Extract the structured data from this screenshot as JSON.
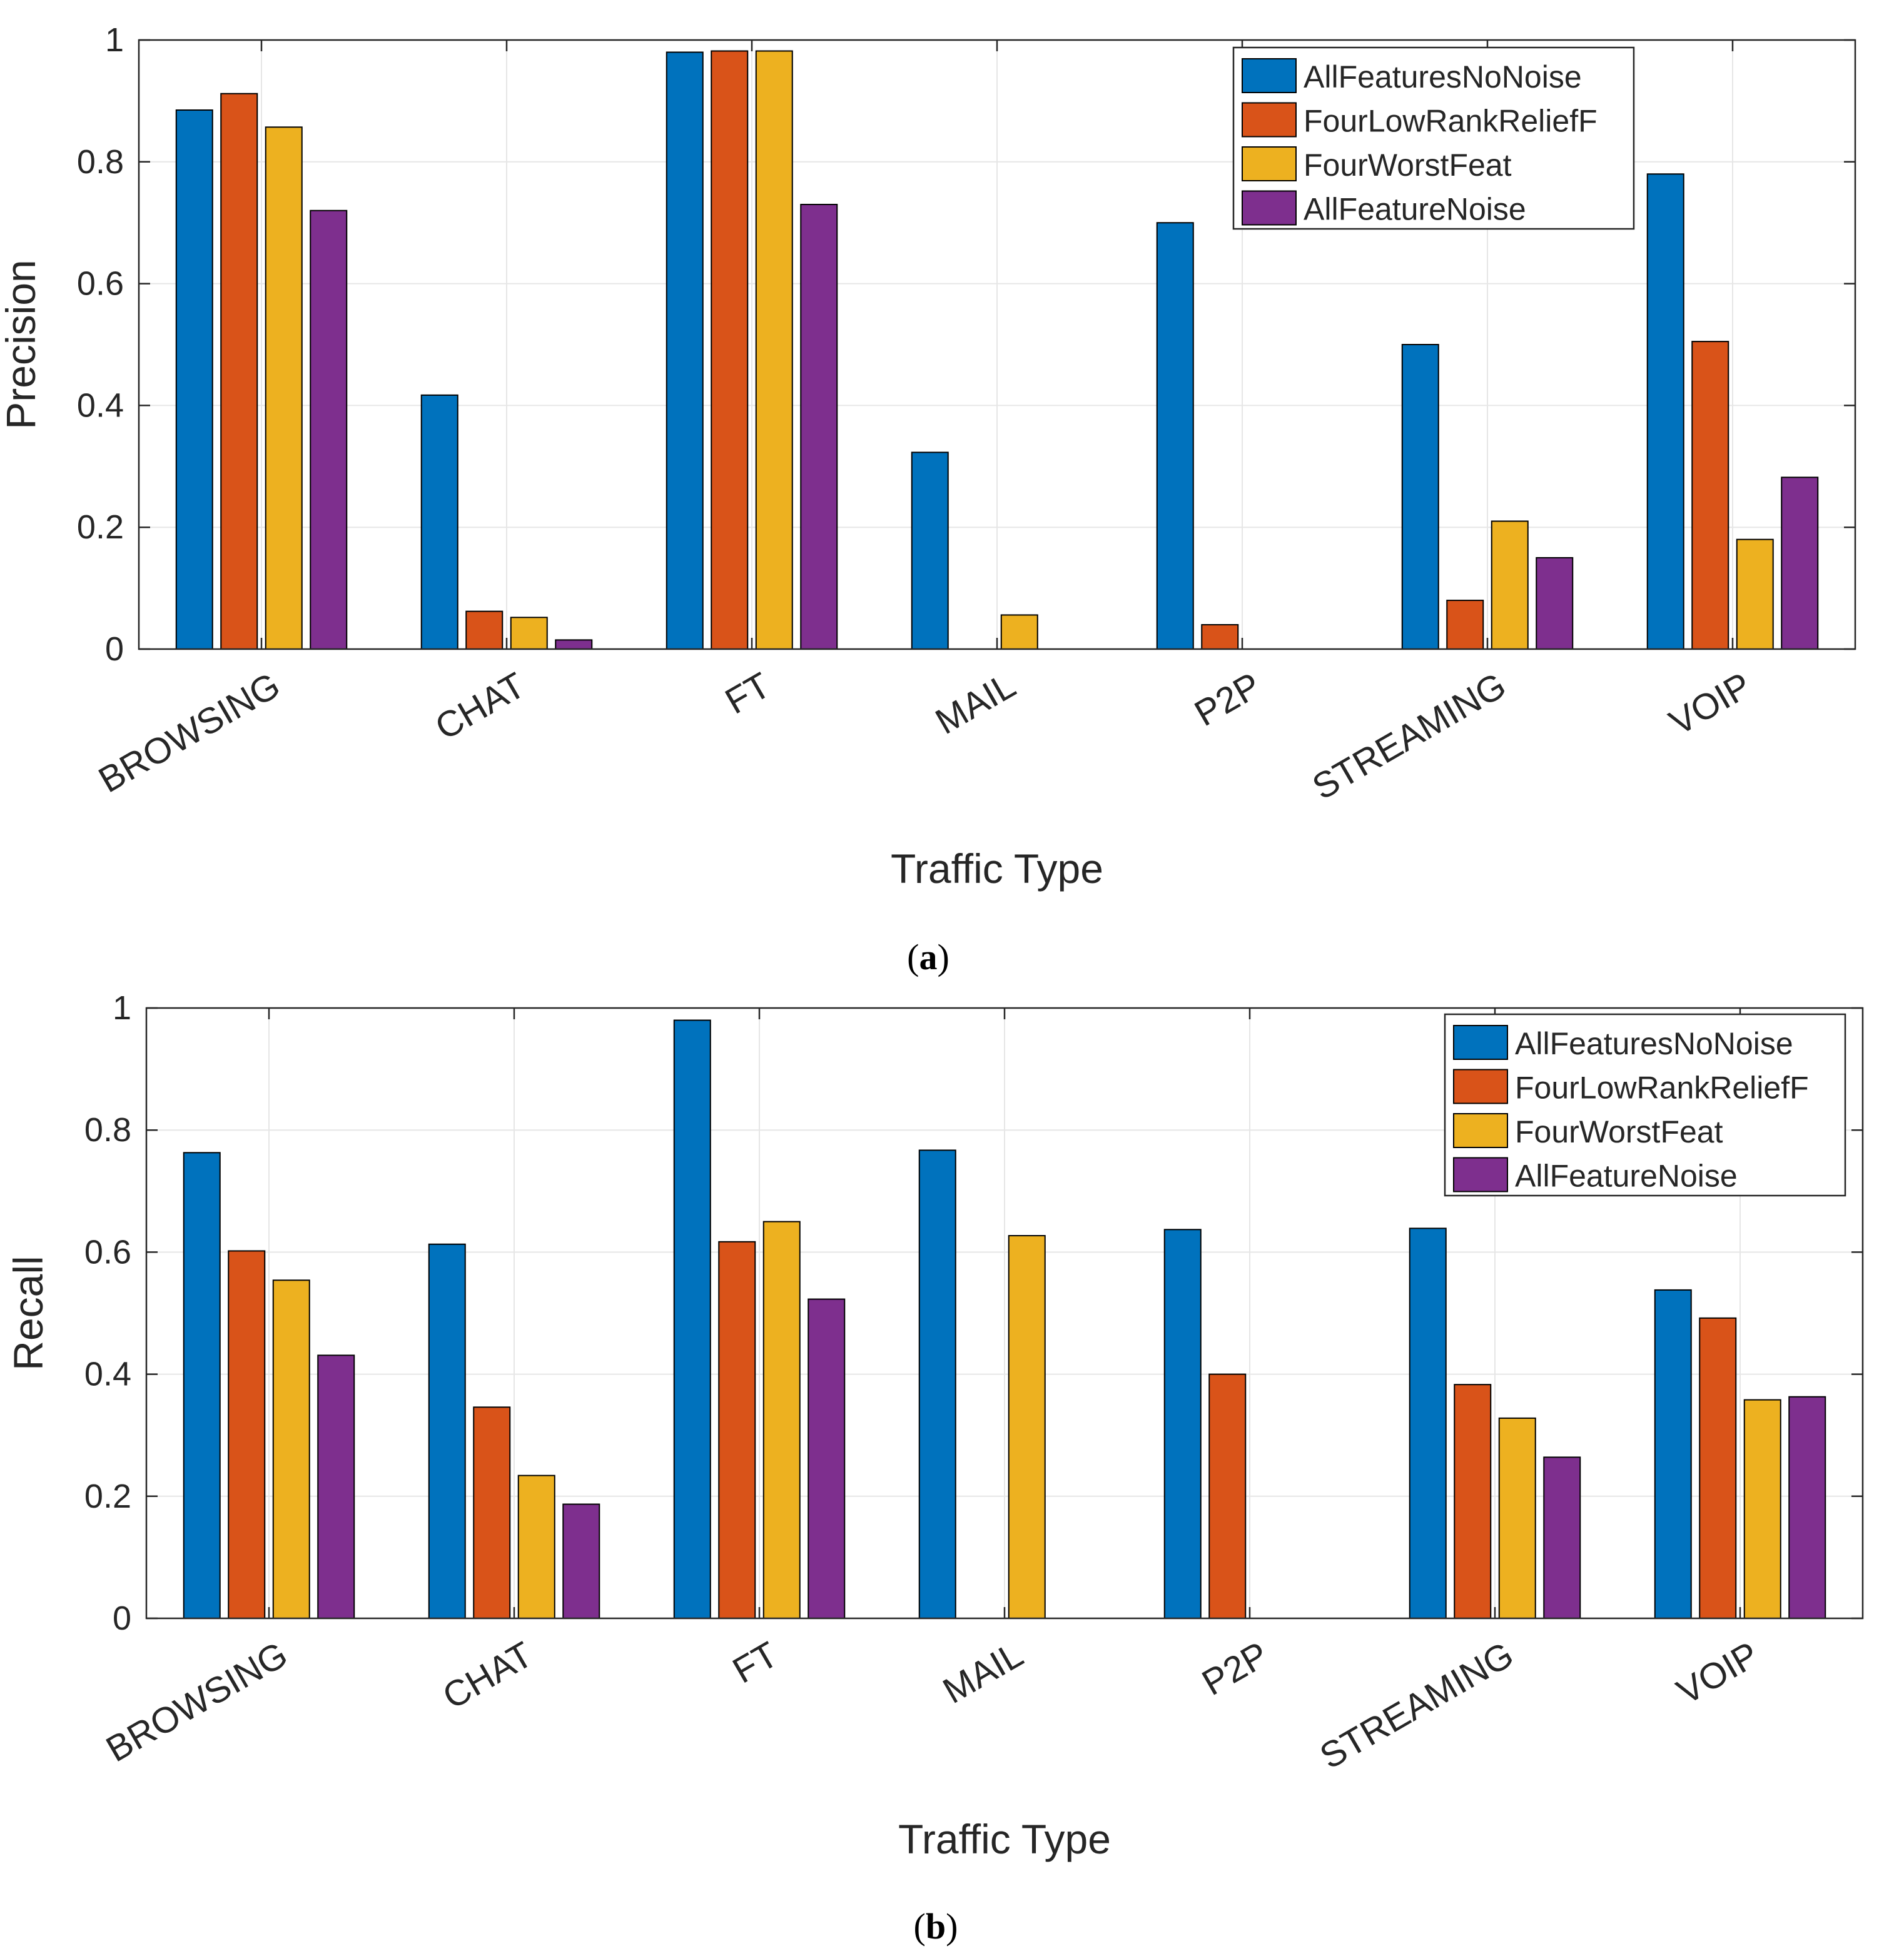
{
  "figure": {
    "captions": [
      "(a)",
      "(b)"
    ],
    "caption_letters": [
      "a",
      "b"
    ]
  },
  "colors": {
    "series": [
      "#0072BD",
      "#D95319",
      "#EDB120",
      "#7E2F8E"
    ],
    "axis": "#262626",
    "grid": "#E6E6E6"
  },
  "chart_data": [
    {
      "type": "bar",
      "panel": "(a)",
      "title": "",
      "xlabel": "Traffic Type",
      "ylabel": "Precision",
      "ylim": [
        0,
        1
      ],
      "yticks": [
        0,
        0.2,
        0.4,
        0.6,
        0.8,
        1
      ],
      "ytick_labels": [
        "0",
        "0.2",
        "0.4",
        "0.6",
        "0.8",
        "1"
      ],
      "grid": true,
      "legend_position": "top-right",
      "categories": [
        "BROWSING",
        "CHAT",
        "FT",
        "MAIL",
        "P2P",
        "STREAMING",
        "VOIP"
      ],
      "series": [
        {
          "name": "AllFeaturesNoNoise",
          "values": [
            0.885,
            0.417,
            0.98,
            0.323,
            0.7,
            0.5,
            0.78
          ]
        },
        {
          "name": "FourLowRankReliefF",
          "values": [
            0.912,
            0.062,
            0.982,
            0.0,
            0.04,
            0.08,
            0.505
          ]
        },
        {
          "name": "FourWorstFeat",
          "values": [
            0.857,
            0.052,
            0.982,
            0.056,
            0.0,
            0.21,
            0.18
          ]
        },
        {
          "name": "AllFeatureNoise",
          "values": [
            0.72,
            0.015,
            0.73,
            0.0,
            0.0,
            0.15,
            0.282
          ]
        }
      ]
    },
    {
      "type": "bar",
      "panel": "(b)",
      "title": "",
      "xlabel": "Traffic Type",
      "ylabel": "Recall",
      "ylim": [
        0,
        1
      ],
      "yticks": [
        0,
        0.2,
        0.4,
        0.6,
        0.8,
        1
      ],
      "ytick_labels": [
        "0",
        "0.2",
        "0.4",
        "0.6",
        "0.8",
        "1"
      ],
      "grid": true,
      "legend_position": "top-right",
      "categories": [
        "BROWSING",
        "CHAT",
        "FT",
        "MAIL",
        "P2P",
        "STREAMING",
        "VOIP"
      ],
      "series": [
        {
          "name": "AllFeaturesNoNoise",
          "values": [
            0.763,
            0.613,
            0.98,
            0.767,
            0.637,
            0.639,
            0.538
          ]
        },
        {
          "name": "FourLowRankReliefF",
          "values": [
            0.602,
            0.346,
            0.617,
            0.0,
            0.4,
            0.383,
            0.492
          ]
        },
        {
          "name": "FourWorstFeat",
          "values": [
            0.554,
            0.234,
            0.65,
            0.627,
            0.0,
            0.328,
            0.358
          ]
        },
        {
          "name": "AllFeatureNoise",
          "values": [
            0.431,
            0.187,
            0.523,
            0.0,
            0.0,
            0.264,
            0.363
          ]
        }
      ]
    }
  ]
}
